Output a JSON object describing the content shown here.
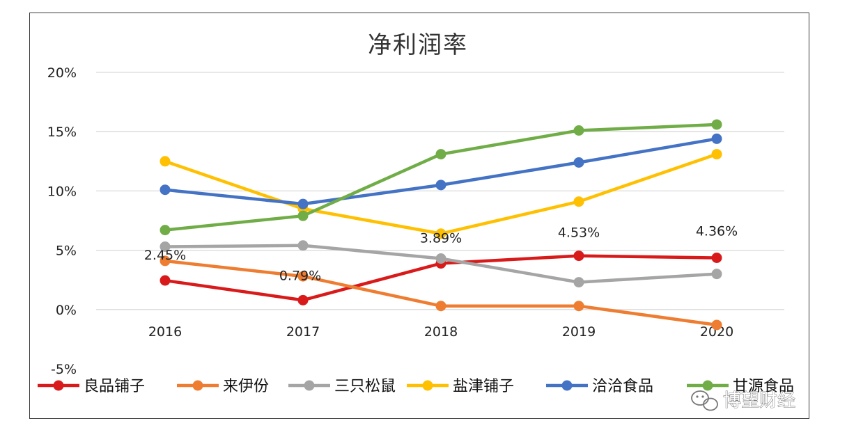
{
  "chart_data": {
    "type": "line",
    "title": "净利润率",
    "categories": [
      "2016",
      "2017",
      "2018",
      "2019",
      "2020"
    ],
    "y_ticks": [
      "20%",
      "15%",
      "10%",
      "5%",
      "0%",
      "-5%"
    ],
    "ylim": [
      -5,
      20
    ],
    "grid": true,
    "legend_position": "bottom",
    "series": [
      {
        "name": "良品铺子",
        "color": "#d91a1a",
        "values": [
          2.45,
          0.79,
          3.89,
          4.53,
          4.36
        ],
        "data_labels": [
          "2.45%",
          "0.79%",
          "3.89%",
          "4.53%",
          "4.36%"
        ]
      },
      {
        "name": "来伊份",
        "color": "#ee7d31",
        "values": [
          4.1,
          2.8,
          0.3,
          0.3,
          -1.3
        ]
      },
      {
        "name": "三只松鼠",
        "color": "#a5a5a5",
        "values": [
          5.3,
          5.4,
          4.3,
          2.3,
          3.0
        ]
      },
      {
        "name": "盐津铺子",
        "color": "#fec000",
        "values": [
          12.5,
          8.5,
          6.4,
          9.1,
          13.1
        ]
      },
      {
        "name": "洽洽食品",
        "color": "#4472c4",
        "values": [
          10.1,
          8.9,
          10.5,
          12.4,
          14.4
        ]
      },
      {
        "name": "甘源食品",
        "color": "#70ad47",
        "values": [
          6.7,
          7.9,
          13.1,
          15.1,
          15.6
        ]
      }
    ]
  },
  "watermark": {
    "text": "博望财经",
    "icon": "wechat-icon"
  }
}
